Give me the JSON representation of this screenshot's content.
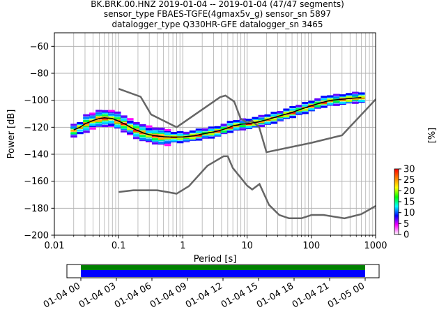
{
  "chart_data": {
    "type": "line",
    "title_lines": [
      "BK.BRK.00.HNZ   2019-01-04 -- 2019-01-04  (47/47 segments)",
      "sensor_type FBAES-TGFE(4gmax5v_g) sensor_sn 5897",
      "datalogger_type Q330HR-GFE datalogger_sn 3465"
    ],
    "xlabel": "Period [s]",
    "ylabel": "Power [dB]",
    "xscale": "log",
    "xlim": [
      0.01,
      1000
    ],
    "ylim": [
      -200,
      -50
    ],
    "x_ticks": [
      {
        "value": 0.01,
        "label": "0.01"
      },
      {
        "value": 0.1,
        "label": "0.1"
      },
      {
        "value": 1,
        "label": "1"
      },
      {
        "value": 10,
        "label": "10"
      },
      {
        "value": 100,
        "label": "100"
      },
      {
        "value": 1000,
        "label": "1000"
      }
    ],
    "y_ticks": [
      {
        "value": -60,
        "label": "−60"
      },
      {
        "value": -80,
        "label": "−80"
      },
      {
        "value": -100,
        "label": "−100"
      },
      {
        "value": -120,
        "label": "−120"
      },
      {
        "value": -140,
        "label": "−140"
      },
      {
        "value": -160,
        "label": "−160"
      },
      {
        "value": -180,
        "label": "−180"
      },
      {
        "value": -200,
        "label": "−200"
      }
    ],
    "grid": true,
    "reference_curves": [
      {
        "x": [
          0.1,
          0.22,
          0.32,
          0.8,
          3.8,
          4.6,
          6.3,
          7.9,
          10,
          12,
          15.4,
          20,
          100,
          300,
          10000
        ],
        "y": [
          -91.5,
          -97.4,
          -110.5,
          -120.0,
          -97.7,
          -96.5,
          -101.0,
          -113.5,
          -116.6,
          -115.3,
          -120.0,
          -138.5,
          -131.5,
          -126.0,
          -48.5
        ]
      },
      {
        "x": [
          0.1,
          0.17,
          0.4,
          0.8,
          1.24,
          2.4,
          4.3,
          5,
          6,
          10,
          12,
          15.6,
          21.9,
          31.6,
          45,
          70,
          101,
          154,
          328,
          600,
          10000
        ],
        "y": [
          -168.0,
          -166.7,
          -166.7,
          -169.2,
          -163.7,
          -148.6,
          -141.5,
          -141.5,
          -150.2,
          -163.2,
          -166.1,
          -162.1,
          -177.5,
          -185.0,
          -187.5,
          -187.5,
          -185.0,
          -185.0,
          -187.5,
          -184.4,
          -151.5
        ]
      }
    ],
    "mean_curve": {
      "x": [
        0.02,
        0.025,
        0.03,
        0.04,
        0.05,
        0.06,
        0.08,
        0.1,
        0.13,
        0.16,
        0.2,
        0.25,
        0.3,
        0.4,
        0.5,
        0.7,
        1,
        1.5,
        2,
        3,
        4,
        5,
        6,
        8,
        10,
        15,
        20,
        30,
        50,
        70,
        100,
        150,
        200,
        300,
        400,
        500,
        600
      ],
      "y": [
        -122,
        -120,
        -117.5,
        -115,
        -113.5,
        -113,
        -113.5,
        -115.5,
        -118,
        -120.5,
        -122.5,
        -124.5,
        -125.5,
        -126.5,
        -127,
        -127.3,
        -127.2,
        -126.3,
        -125,
        -123.5,
        -122,
        -120.5,
        -119,
        -117.8,
        -117.5,
        -116,
        -114.5,
        -112,
        -109,
        -106.5,
        -104,
        -101.5,
        -100,
        -99.2,
        -98.6,
        -98.2,
        -98
      ]
    },
    "colorbar": {
      "label": "[%]",
      "min": 0,
      "max": 30,
      "ticks": [
        {
          "value": 0,
          "label": "0"
        },
        {
          "value": 5,
          "label": "5"
        },
        {
          "value": 10,
          "label": "10"
        },
        {
          "value": 15,
          "label": "15"
        },
        {
          "value": 20,
          "label": "20"
        },
        {
          "value": 25,
          "label": "25"
        },
        {
          "value": 30,
          "label": "30"
        }
      ],
      "colors": [
        "#ffffff",
        "#ff00ff",
        "#0000ff",
        "#00ffff",
        "#00ff00",
        "#ffff00",
        "#ff8000",
        "#ff0000"
      ]
    },
    "coverage": {
      "ticks": [
        "01-04 00",
        "01-04 03",
        "01-04 06",
        "01-04 09",
        "01-04 12",
        "01-04 15",
        "01-04 18",
        "01-04 21",
        "01-05 00"
      ],
      "data_color": "#008000",
      "psd_color": "#0000ff",
      "start_fraction": 0.0,
      "end_fraction": 1.0
    },
    "colors": {
      "reference": "#666666",
      "mean": "#000000",
      "grid": "#b0b0b0"
    }
  }
}
